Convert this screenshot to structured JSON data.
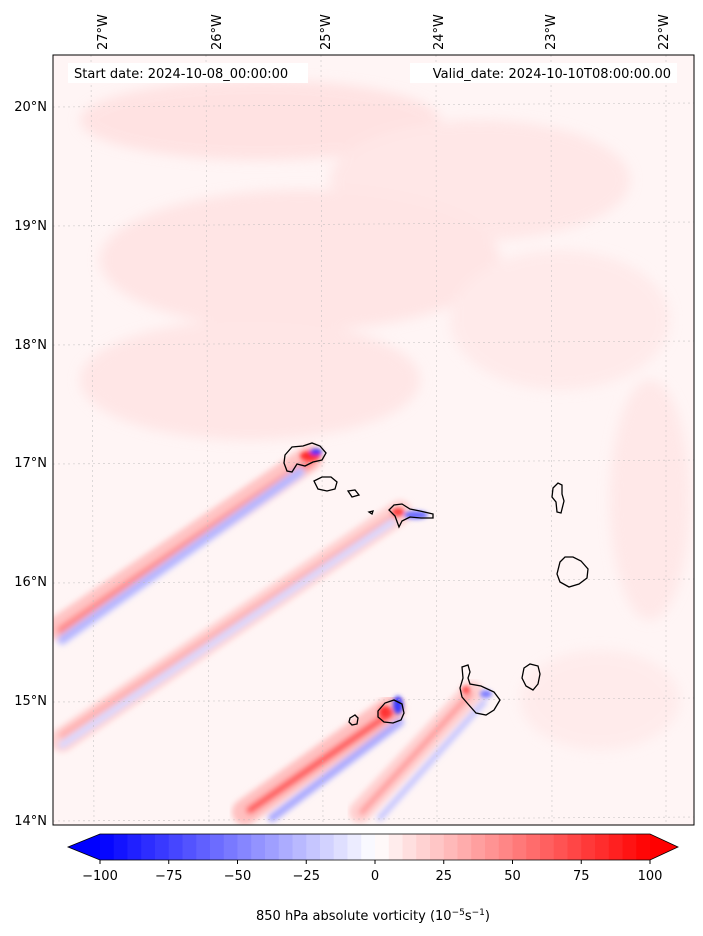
{
  "header": {
    "start_date": "Start date: 2024-10-08_00:00:00",
    "valid_date": "Valid_date: 2024-10-10T08:00:00.00"
  },
  "map": {
    "lon_range": [
      -27.33,
      -21.77
    ],
    "lat_range": [
      13.95,
      20.42
    ],
    "lon_ticks": [
      {
        "value": -27,
        "label": "27°W"
      },
      {
        "value": -26,
        "label": "26°W"
      },
      {
        "value": -25,
        "label": "25°W"
      },
      {
        "value": -24,
        "label": "24°W"
      },
      {
        "value": -23,
        "label": "23°W"
      },
      {
        "value": -22,
        "label": "22°W"
      }
    ],
    "lat_ticks": [
      {
        "value": 20,
        "label": "20°N"
      },
      {
        "value": 19,
        "label": "19°N"
      },
      {
        "value": 18,
        "label": "18°N"
      },
      {
        "value": 17,
        "label": "17°N"
      },
      {
        "value": 16,
        "label": "16°N"
      },
      {
        "value": 15,
        "label": "15°N"
      },
      {
        "value": 14,
        "label": "14°N"
      }
    ]
  },
  "colorbar": {
    "min": -100,
    "max": 100,
    "ticks": [
      {
        "value": -100,
        "label": "−100"
      },
      {
        "value": -75,
        "label": "−75"
      },
      {
        "value": -50,
        "label": "−50"
      },
      {
        "value": -25,
        "label": "−25"
      },
      {
        "value": 0,
        "label": "0"
      },
      {
        "value": 25,
        "label": "25"
      },
      {
        "value": 50,
        "label": "50"
      },
      {
        "value": 75,
        "label": "75"
      },
      {
        "value": 100,
        "label": "100"
      }
    ],
    "label_prefix": "850 hPa absolute vorticity (10",
    "label_exp1": "−5",
    "label_mid": "s",
    "label_exp2": "−1",
    "label_suffix": ")",
    "colors": {
      "negative": "#0000ff",
      "neutral": "#ffffff",
      "positive": "#ff0000"
    }
  }
}
